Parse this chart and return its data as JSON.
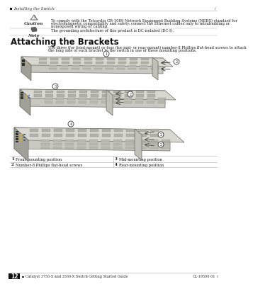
{
  "page_number": "12",
  "header_text": "Installing the Switch",
  "header_right": "i",
  "footer_center": "Catalyst 3750-X and 3560-X Switch Getting Started Guide",
  "footer_right": "OL-19590-01",
  "caution_label": "Caution",
  "caution_text_line1": "To comply with the Telcordia GR-1089 Network Equipment Building Systems (NEBS) standard for",
  "caution_text_line2": "electromagnetic compatibility and safety, connect the Ethernet cables only to intrabuilding or",
  "caution_text_line3": "nonexposed wiring or cabling.",
  "note_label": "Note",
  "note_text": "The grounding architecture of this product is DC-isolated (DC-I).",
  "section_title": "Attaching the Brackets",
  "body_line1": "Use three (for front-mount) or four (for mid- or rear-mount) number-8 Phillips flat-head screws to attach",
  "body_line2": "the long side of each bracket to the switch in one of these mounting positions.",
  "legend_items": [
    {
      "num": "1",
      "label": "Front-mounting position",
      "col": 0
    },
    {
      "num": "2",
      "label": "Number-8 Phillips flat-head screws",
      "col": 0
    },
    {
      "num": "3",
      "label": "Mid-mounting position",
      "col": 1
    },
    {
      "num": "4",
      "label": "Rear-mounting position",
      "col": 1
    }
  ],
  "bg_color": "#ffffff",
  "text_color": "#1a1a1a",
  "line_color": "#aaaaaa",
  "switch_top_color": "#d4d4cc",
  "switch_front_color": "#b8b8b0",
  "switch_side_color": "#989890",
  "switch_dark_color": "#787870",
  "bracket_color": "#c8c8c0",
  "bracket_dark_color": "#a0a098",
  "port_color": "#504848",
  "vent_color": "#c0c0b8",
  "vent_dark_color": "#a8a8a0",
  "arrow_color": "#333333",
  "callout_bg": "#ffffff",
  "callout_border": "#333333"
}
